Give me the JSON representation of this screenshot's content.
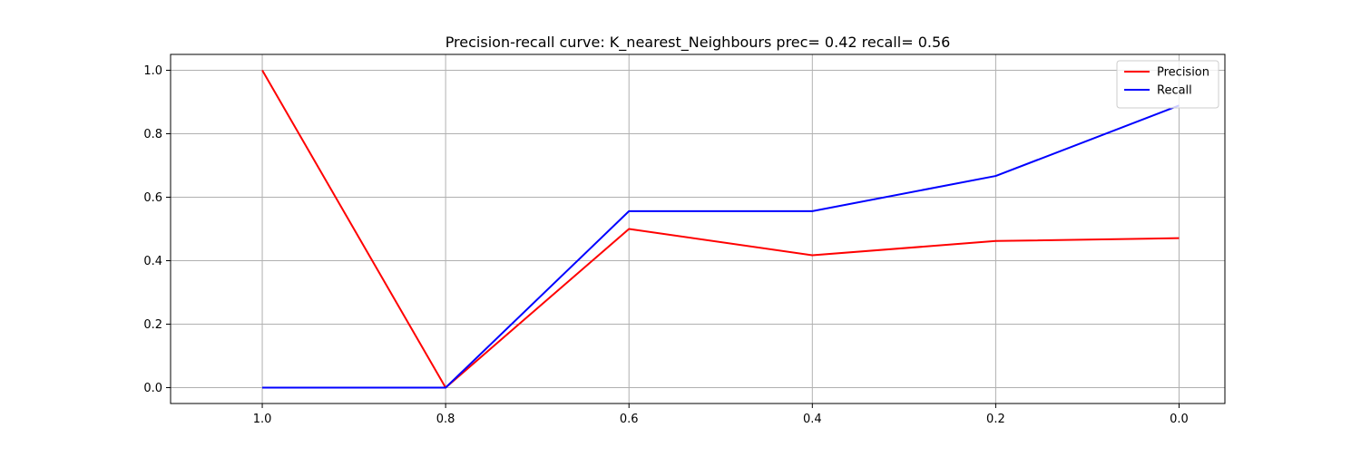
{
  "chart_data": {
    "type": "line",
    "title": "Precision-recall curve: K_nearest_Neighbours prec= 0.42 recall= 0.56",
    "xlabel": "",
    "ylabel": "",
    "x": [
      1.0,
      0.8,
      0.6,
      0.4,
      0.2,
      0.0
    ],
    "x_tick_labels": [
      "1.0",
      "0.8",
      "0.6",
      "0.4",
      "0.2",
      "0.0"
    ],
    "y_tick_labels": [
      "0.0",
      "0.2",
      "0.4",
      "0.6",
      "0.8",
      "1.0"
    ],
    "xlim": [
      1.1,
      -0.05
    ],
    "x_inverted": true,
    "ylim": [
      -0.05,
      1.05
    ],
    "grid": true,
    "legend_position": "top-right",
    "series": [
      {
        "name": "Precision",
        "color": "#ff0000",
        "values": [
          1.0,
          0.0,
          0.5,
          0.417,
          0.462,
          0.471
        ]
      },
      {
        "name": "Recall",
        "color": "#0000ff",
        "values": [
          0.0,
          0.0,
          0.556,
          0.556,
          0.667,
          0.889
        ]
      }
    ]
  }
}
